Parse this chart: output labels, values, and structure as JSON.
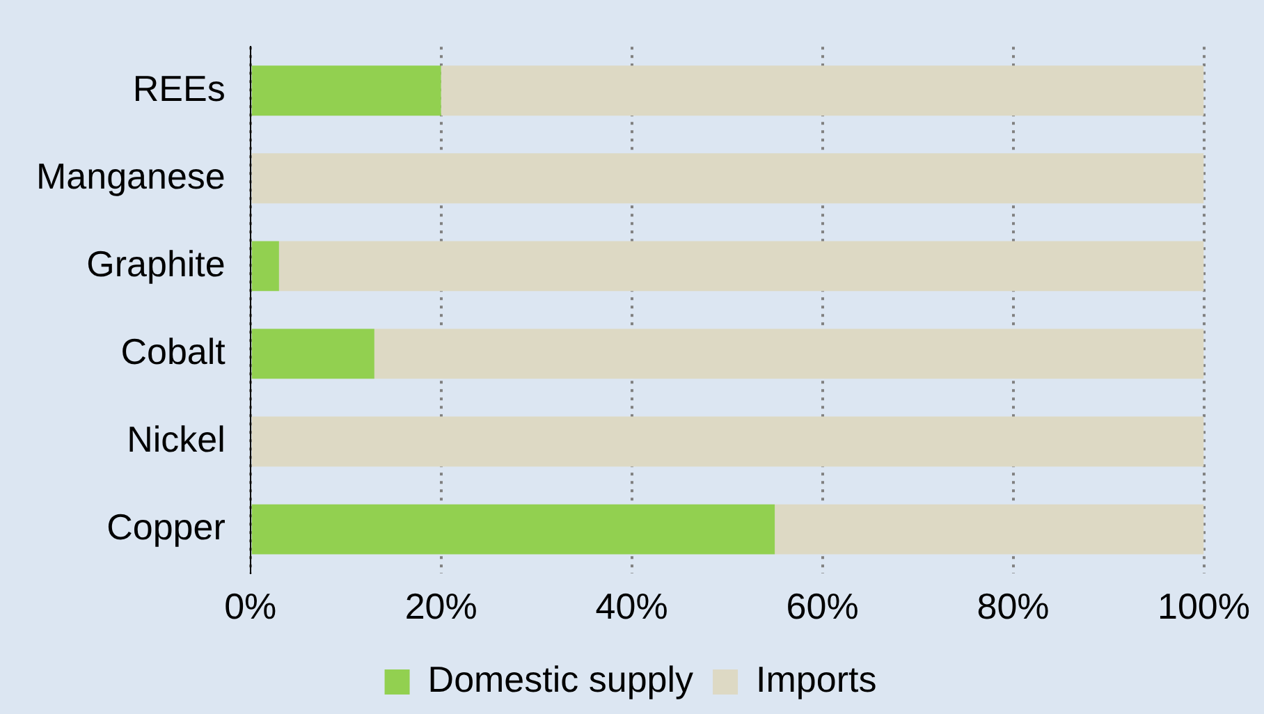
{
  "chart_data": {
    "type": "bar",
    "orientation": "horizontal",
    "stacked": true,
    "categories": [
      "REEs",
      "Manganese",
      "Graphite",
      "Cobalt",
      "Nickel",
      "Copper"
    ],
    "series": [
      {
        "name": "Domestic supply",
        "color": "#92d050",
        "values": [
          20,
          0,
          3,
          13,
          0,
          55
        ]
      },
      {
        "name": "Imports",
        "color": "#ddd9c4",
        "values": [
          80,
          100,
          97,
          87,
          100,
          45
        ]
      }
    ],
    "xlim": [
      0,
      100
    ],
    "xticks": [
      {
        "value": 0,
        "label": "0%"
      },
      {
        "value": 20,
        "label": "20%"
      },
      {
        "value": 40,
        "label": "40%"
      },
      {
        "value": 60,
        "label": "60%"
      },
      {
        "value": 80,
        "label": "80%"
      },
      {
        "value": 100,
        "label": "100%"
      }
    ],
    "grid": "x",
    "legend": "bottom"
  }
}
